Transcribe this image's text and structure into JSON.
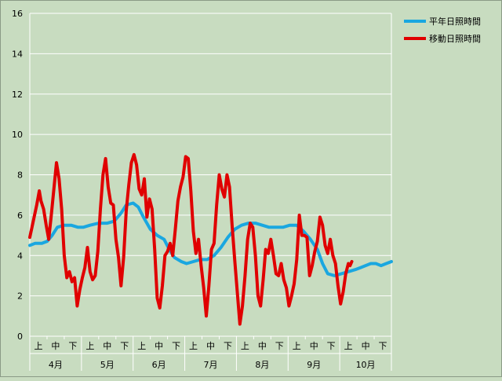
{
  "chart_data": {
    "type": "line",
    "title": "",
    "xlabel": "",
    "ylabel": "",
    "ylim": [
      0,
      16
    ],
    "yticks": [
      0,
      2,
      4,
      6,
      8,
      10,
      12,
      14,
      16
    ],
    "grid": true,
    "legend_position": "top-right",
    "months": [
      "4月",
      "5月",
      "6月",
      "7月",
      "8月",
      "9月",
      "10月"
    ],
    "dekad_labels": [
      "上",
      "中",
      "下"
    ],
    "x_domain": [
      0,
      21
    ],
    "series": [
      {
        "name": "平年日照時間",
        "color": "#1aa7e0",
        "points": [
          [
            0,
            4.5
          ],
          [
            0.3,
            4.6
          ],
          [
            0.7,
            4.6
          ],
          [
            1,
            4.7
          ],
          [
            1.3,
            5.0
          ],
          [
            1.6,
            5.4
          ],
          [
            2,
            5.5
          ],
          [
            2.4,
            5.5
          ],
          [
            2.8,
            5.4
          ],
          [
            3.1,
            5.4
          ],
          [
            3.5,
            5.5
          ],
          [
            4,
            5.6
          ],
          [
            4.5,
            5.6
          ],
          [
            4.9,
            5.7
          ],
          [
            5.3,
            6.1
          ],
          [
            5.6,
            6.5
          ],
          [
            6,
            6.6
          ],
          [
            6.3,
            6.4
          ],
          [
            6.6,
            5.9
          ],
          [
            7,
            5.3
          ],
          [
            7.4,
            5.0
          ],
          [
            7.8,
            4.8
          ],
          [
            8.1,
            4.3
          ],
          [
            8.4,
            3.9
          ],
          [
            8.8,
            3.7
          ],
          [
            9.1,
            3.6
          ],
          [
            9.5,
            3.7
          ],
          [
            9.9,
            3.8
          ],
          [
            10.3,
            3.8
          ],
          [
            10.7,
            4.0
          ],
          [
            11.1,
            4.4
          ],
          [
            11.5,
            4.9
          ],
          [
            11.9,
            5.3
          ],
          [
            12.3,
            5.5
          ],
          [
            12.7,
            5.6
          ],
          [
            13.1,
            5.6
          ],
          [
            13.5,
            5.5
          ],
          [
            13.9,
            5.4
          ],
          [
            14.3,
            5.4
          ],
          [
            14.7,
            5.4
          ],
          [
            15.1,
            5.5
          ],
          [
            15.5,
            5.5
          ],
          [
            15.9,
            5.2
          ],
          [
            16.3,
            4.8
          ],
          [
            16.7,
            4.3
          ],
          [
            17.0,
            3.6
          ],
          [
            17.3,
            3.1
          ],
          [
            17.7,
            3.0
          ],
          [
            18.1,
            3.1
          ],
          [
            18.5,
            3.2
          ],
          [
            18.9,
            3.3
          ],
          [
            19.2,
            3.4
          ],
          [
            19.5,
            3.5
          ],
          [
            19.8,
            3.6
          ],
          [
            20.1,
            3.6
          ],
          [
            20.4,
            3.5
          ],
          [
            20.7,
            3.6
          ],
          [
            21.0,
            3.7
          ]
        ]
      },
      {
        "name": "移動日照時間",
        "color": "#e00000",
        "points": [
          [
            0,
            4.9
          ],
          [
            0.1,
            5.3
          ],
          [
            0.25,
            5.9
          ],
          [
            0.4,
            6.5
          ],
          [
            0.55,
            7.2
          ],
          [
            0.65,
            6.7
          ],
          [
            0.8,
            6.3
          ],
          [
            0.95,
            5.5
          ],
          [
            1.1,
            4.8
          ],
          [
            1.25,
            6.0
          ],
          [
            1.4,
            7.3
          ],
          [
            1.55,
            8.6
          ],
          [
            1.7,
            7.8
          ],
          [
            1.85,
            6.3
          ],
          [
            2.0,
            4.0
          ],
          [
            2.15,
            2.9
          ],
          [
            2.3,
            3.2
          ],
          [
            2.45,
            2.7
          ],
          [
            2.6,
            2.9
          ],
          [
            2.75,
            1.5
          ],
          [
            2.9,
            2.3
          ],
          [
            3.05,
            2.9
          ],
          [
            3.2,
            3.4
          ],
          [
            3.35,
            4.4
          ],
          [
            3.5,
            3.2
          ],
          [
            3.65,
            2.8
          ],
          [
            3.8,
            3.0
          ],
          [
            3.95,
            4.2
          ],
          [
            4.1,
            6.3
          ],
          [
            4.25,
            8.0
          ],
          [
            4.4,
            8.8
          ],
          [
            4.55,
            7.4
          ],
          [
            4.7,
            6.6
          ],
          [
            4.85,
            6.5
          ],
          [
            5.0,
            4.8
          ],
          [
            5.15,
            3.9
          ],
          [
            5.3,
            2.5
          ],
          [
            5.45,
            3.9
          ],
          [
            5.6,
            6.2
          ],
          [
            5.75,
            7.5
          ],
          [
            5.9,
            8.6
          ],
          [
            6.05,
            9.0
          ],
          [
            6.2,
            8.5
          ],
          [
            6.35,
            7.3
          ],
          [
            6.5,
            7.0
          ],
          [
            6.65,
            7.8
          ],
          [
            6.8,
            5.9
          ],
          [
            6.95,
            6.8
          ],
          [
            7.1,
            6.3
          ],
          [
            7.25,
            4.3
          ],
          [
            7.4,
            1.9
          ],
          [
            7.55,
            1.4
          ],
          [
            7.7,
            2.5
          ],
          [
            7.85,
            4.0
          ],
          [
            8.0,
            4.2
          ],
          [
            8.15,
            4.6
          ],
          [
            8.3,
            4.0
          ],
          [
            8.45,
            5.3
          ],
          [
            8.6,
            6.7
          ],
          [
            8.75,
            7.4
          ],
          [
            8.9,
            7.9
          ],
          [
            9.05,
            8.9
          ],
          [
            9.2,
            8.8
          ],
          [
            9.35,
            7.2
          ],
          [
            9.5,
            5.2
          ],
          [
            9.65,
            4.1
          ],
          [
            9.8,
            4.8
          ],
          [
            9.95,
            3.5
          ],
          [
            10.1,
            2.4
          ],
          [
            10.25,
            1.0
          ],
          [
            10.4,
            2.5
          ],
          [
            10.55,
            4.3
          ],
          [
            10.7,
            4.6
          ],
          [
            10.85,
            6.5
          ],
          [
            11.0,
            8.0
          ],
          [
            11.15,
            7.3
          ],
          [
            11.3,
            6.9
          ],
          [
            11.45,
            8.0
          ],
          [
            11.6,
            7.4
          ],
          [
            11.75,
            5.5
          ],
          [
            11.9,
            3.8
          ],
          [
            12.05,
            2.2
          ],
          [
            12.2,
            0.6
          ],
          [
            12.35,
            1.5
          ],
          [
            12.5,
            3.0
          ],
          [
            12.65,
            4.8
          ],
          [
            12.8,
            5.6
          ],
          [
            12.95,
            5.4
          ],
          [
            13.1,
            4.0
          ],
          [
            13.25,
            2.0
          ],
          [
            13.4,
            1.5
          ],
          [
            13.55,
            2.8
          ],
          [
            13.7,
            4.3
          ],
          [
            13.85,
            4.1
          ],
          [
            14.0,
            4.8
          ],
          [
            14.15,
            4.0
          ],
          [
            14.3,
            3.1
          ],
          [
            14.45,
            3.0
          ],
          [
            14.6,
            3.6
          ],
          [
            14.75,
            2.8
          ],
          [
            14.9,
            2.4
          ],
          [
            15.05,
            1.5
          ],
          [
            15.2,
            2.0
          ],
          [
            15.35,
            2.6
          ],
          [
            15.5,
            3.8
          ],
          [
            15.65,
            6.0
          ],
          [
            15.8,
            5.0
          ],
          [
            15.95,
            5.0
          ],
          [
            16.1,
            4.9
          ],
          [
            16.25,
            3.0
          ],
          [
            16.4,
            3.5
          ],
          [
            16.55,
            4.2
          ],
          [
            16.7,
            4.7
          ],
          [
            16.85,
            5.9
          ],
          [
            17.0,
            5.5
          ],
          [
            17.15,
            4.5
          ],
          [
            17.3,
            4.1
          ],
          [
            17.45,
            4.8
          ],
          [
            17.6,
            4.0
          ],
          [
            17.75,
            3.6
          ],
          [
            17.9,
            2.5
          ],
          [
            18.05,
            1.6
          ],
          [
            18.2,
            2.2
          ],
          [
            18.35,
            3.1
          ],
          [
            18.5,
            3.6
          ],
          [
            18.6,
            3.5
          ],
          [
            18.7,
            3.7
          ]
        ]
      }
    ]
  }
}
